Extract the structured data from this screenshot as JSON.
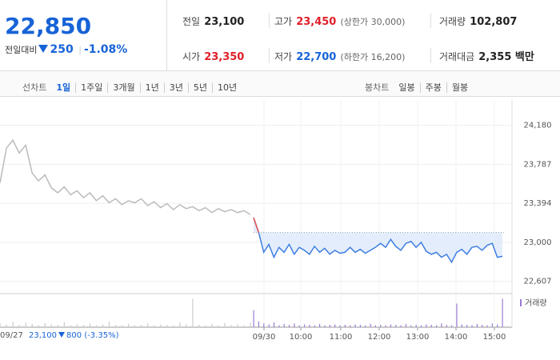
{
  "header": {
    "price": "22,850",
    "change_label": "전일대비",
    "change": "250",
    "rate": "-1.08%"
  },
  "info": [
    {
      "label": "전일",
      "value": "23,100"
    },
    {
      "label": "고가",
      "value": "23,450",
      "extra": "(상한가 30,000)"
    },
    {
      "label": "거래량",
      "value": "102,807"
    },
    {
      "label": "시가",
      "value": "23,350"
    },
    {
      "label": "저가",
      "value": "22,700",
      "extra": "(하한가 16,200)"
    },
    {
      "label": "거래대금",
      "value": "2,355 백만"
    }
  ],
  "tabs": {
    "line_label": "선차트",
    "line_items": [
      "1일",
      "1주일",
      "3개월",
      "1년",
      "3년",
      "5년",
      "10년"
    ],
    "candle_label": "봉차트",
    "candle_items": [
      "일봉",
      "주봉",
      "월봉"
    ]
  },
  "chart_data": {
    "type": "line",
    "baseline": 23100,
    "ylim": [
      22500,
      24435
    ],
    "yticks": [
      {
        "value": 24180,
        "label": "24,180"
      },
      {
        "value": 23787,
        "label": "23,787"
      },
      {
        "value": 23394,
        "label": "23,394"
      },
      {
        "value": 23000,
        "label": "23,000"
      },
      {
        "value": 22607,
        "label": "22,607"
      }
    ],
    "xticks": [
      "09/30",
      "10:00",
      "11:00",
      "12:00",
      "13:00",
      "14:00",
      "15:00"
    ],
    "volume_label": "거래량",
    "vlim": [
      0,
      33000
    ],
    "series": [
      {
        "name": "09/27",
        "color": "#bbbbbb",
        "values": [
          23600,
          23950,
          24030,
          23900,
          23980,
          23700,
          23620,
          23680,
          23550,
          23500,
          23560,
          23480,
          23520,
          23450,
          23500,
          23420,
          23470,
          23400,
          23440,
          23380,
          23420,
          23400,
          23440,
          23370,
          23410,
          23350,
          23390,
          23330,
          23380,
          23340,
          23360,
          23320,
          23350,
          23300,
          23340,
          23310,
          23330,
          23300,
          23320,
          23280
        ],
        "volume": [
          4000,
          3000,
          6000,
          2500,
          5000,
          3500,
          2000,
          4500,
          3000,
          2500,
          5500,
          2000,
          3000,
          2500,
          4000,
          2000,
          3000,
          6000,
          2500,
          2000,
          3500,
          2000,
          2500,
          4000,
          2000,
          3000,
          2500,
          2000,
          5000,
          3000,
          30000,
          2500,
          2000,
          3500,
          2000,
          4500,
          2500,
          3000,
          2000,
          5000
        ]
      },
      {
        "name": "09/30",
        "color": "#3d7ee0",
        "values": [
          23250,
          23100,
          22900,
          22980,
          22850,
          22950,
          22900,
          22980,
          22880,
          22950,
          22920,
          22880,
          22960,
          22900,
          22940,
          22880,
          22920,
          22890,
          22900,
          22950,
          22900,
          22930,
          22890,
          22920,
          22950,
          22990,
          22950,
          23030,
          22960,
          22920,
          22990,
          23010,
          22950,
          23000,
          22910,
          22880,
          22900,
          22850,
          22880,
          22800,
          22900,
          22930,
          22880,
          22950,
          22960,
          22920,
          22970,
          22990,
          22850,
          22860
        ],
        "volume": [
          18000,
          6000,
          4000,
          3000,
          5000,
          2000,
          3500,
          2500,
          4000,
          2000,
          3000,
          2500,
          2000,
          3500,
          2000,
          2500,
          3000,
          2000,
          2500,
          2000,
          3000,
          2500,
          2000,
          3500,
          2000,
          2500,
          2000,
          3000,
          2500,
          2000,
          3500,
          2000,
          2500,
          2000,
          3000,
          2500,
          2000,
          4000,
          2500,
          2000,
          25000,
          3000,
          2500,
          2000,
          3500,
          2500,
          2000,
          4000,
          3000,
          30000
        ]
      }
    ],
    "prev_close": {
      "date": "09/27",
      "close": "23,100",
      "change": "800",
      "rate": "(-3.35%)"
    }
  }
}
